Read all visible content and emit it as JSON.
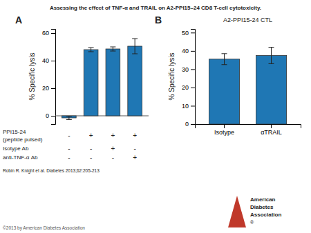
{
  "title": "Assessing the effect of TNF-α and TRAIL on A2-PPI15–24 CD8 T-cell cytotoxicity.",
  "footer": "©2013 by American Diabetes Association",
  "logo_text": [
    "American",
    "Diabetes",
    "Association",
    "®"
  ],
  "chart_data": [
    {
      "type": "bar",
      "panel_label": "A",
      "categories": [
        null,
        null,
        null,
        null
      ],
      "values": [
        -1.5,
        48.0,
        48.5,
        50.5
      ],
      "errors": [
        1.2,
        1.5,
        1.5,
        5.5
      ],
      "ylim": [
        -6,
        63
      ],
      "yticks": [
        0,
        20,
        40,
        60
      ],
      "ylabel": "% Specific lysis",
      "tick_labels": "y",
      "table": {
        "row_labels": [
          [
            "PPI15-24",
            "(peptide pulsed)"
          ],
          [
            "Isotype Ab"
          ],
          [
            "anti-TNF-α Ab"
          ]
        ],
        "rows": [
          [
            "-",
            "+",
            "+",
            "+"
          ],
          [
            "-",
            "-",
            "+",
            "-"
          ],
          [
            "-",
            "-",
            "-",
            "+"
          ]
        ]
      },
      "citation": "Robin R. Knight et al. Diabetes 2013;62:205-213"
    },
    {
      "type": "bar",
      "panel_label": "B",
      "title": "A2-PPI15-24 CTL",
      "categories": [
        "Isotype",
        "αTRAIL"
      ],
      "values": [
        35.5,
        37.5
      ],
      "errors": [
        3.0,
        4.5
      ],
      "ylim": [
        0,
        52
      ],
      "yticks": [
        0,
        10,
        20,
        30,
        40,
        50
      ],
      "ylabel": "% Specific lysis"
    }
  ]
}
